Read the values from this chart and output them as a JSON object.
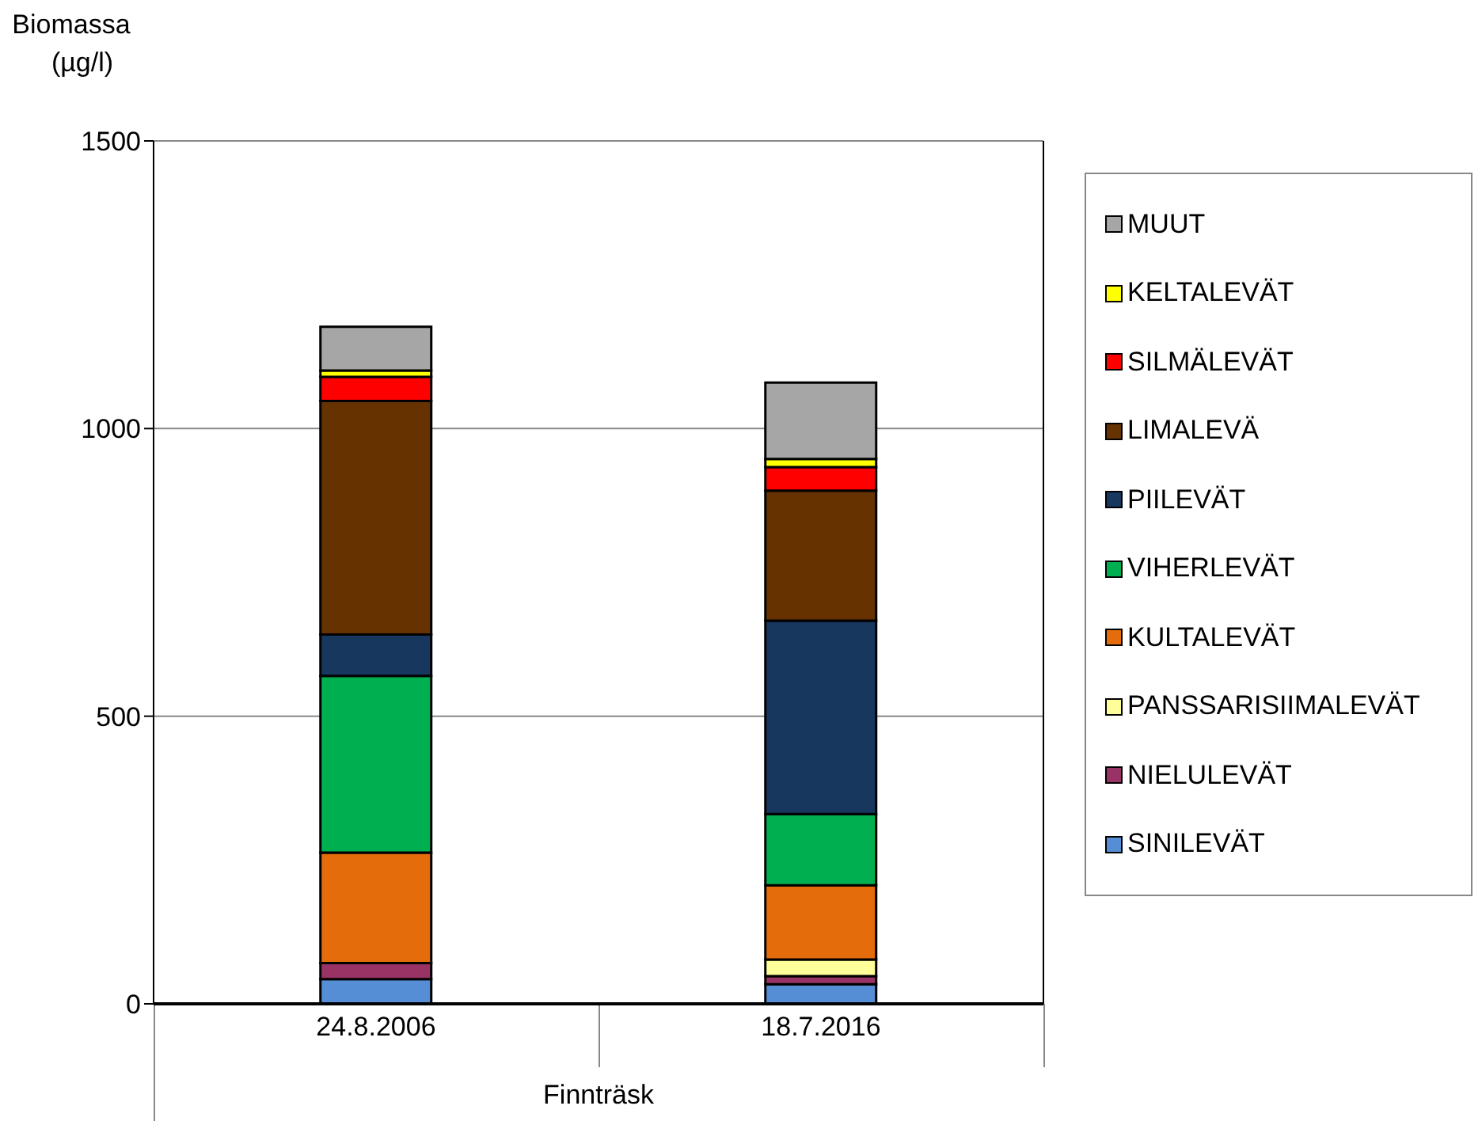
{
  "chart_data": {
    "type": "bar",
    "stacked": true,
    "ylabel": "Biomassa (µg/l)",
    "xlabel": "Finnträsk",
    "categories": [
      "24.8.2006",
      "18.7.2016"
    ],
    "ylim": [
      0,
      1500
    ],
    "yticks": [
      0,
      500,
      1000,
      1500
    ],
    "grid": "y",
    "legend": "right",
    "series": [
      {
        "name": "SINILEVÄT",
        "color": "#558ed5",
        "values": [
          43,
          34
        ]
      },
      {
        "name": "NIELULEVÄT",
        "color": "#993366",
        "values": [
          28,
          14
        ]
      },
      {
        "name": "PANSSARISIIMALEVÄT",
        "color": "#ffff99",
        "values": [
          null,
          29
        ]
      },
      {
        "name": "KULTALEVÄT",
        "color": "#e46c0a",
        "values": [
          192,
          129
        ]
      },
      {
        "name": "VIHERLEVÄT",
        "color": "#00b050",
        "values": [
          307,
          124
        ]
      },
      {
        "name": "PIILEVÄT",
        "color": "#17375e",
        "values": [
          72,
          336
        ]
      },
      {
        "name": "LIMALEVÄ",
        "color": "#663300",
        "values": [
          406,
          226
        ]
      },
      {
        "name": "SILMÄLEVÄT",
        "color": "#ff0000",
        "values": [
          42,
          41
        ]
      },
      {
        "name": "KELTALEVÄT",
        "color": "#ffff00",
        "values": [
          11,
          14
        ]
      },
      {
        "name": "MUUT",
        "color": "#a6a6a6",
        "values": [
          76,
          133
        ]
      }
    ]
  }
}
